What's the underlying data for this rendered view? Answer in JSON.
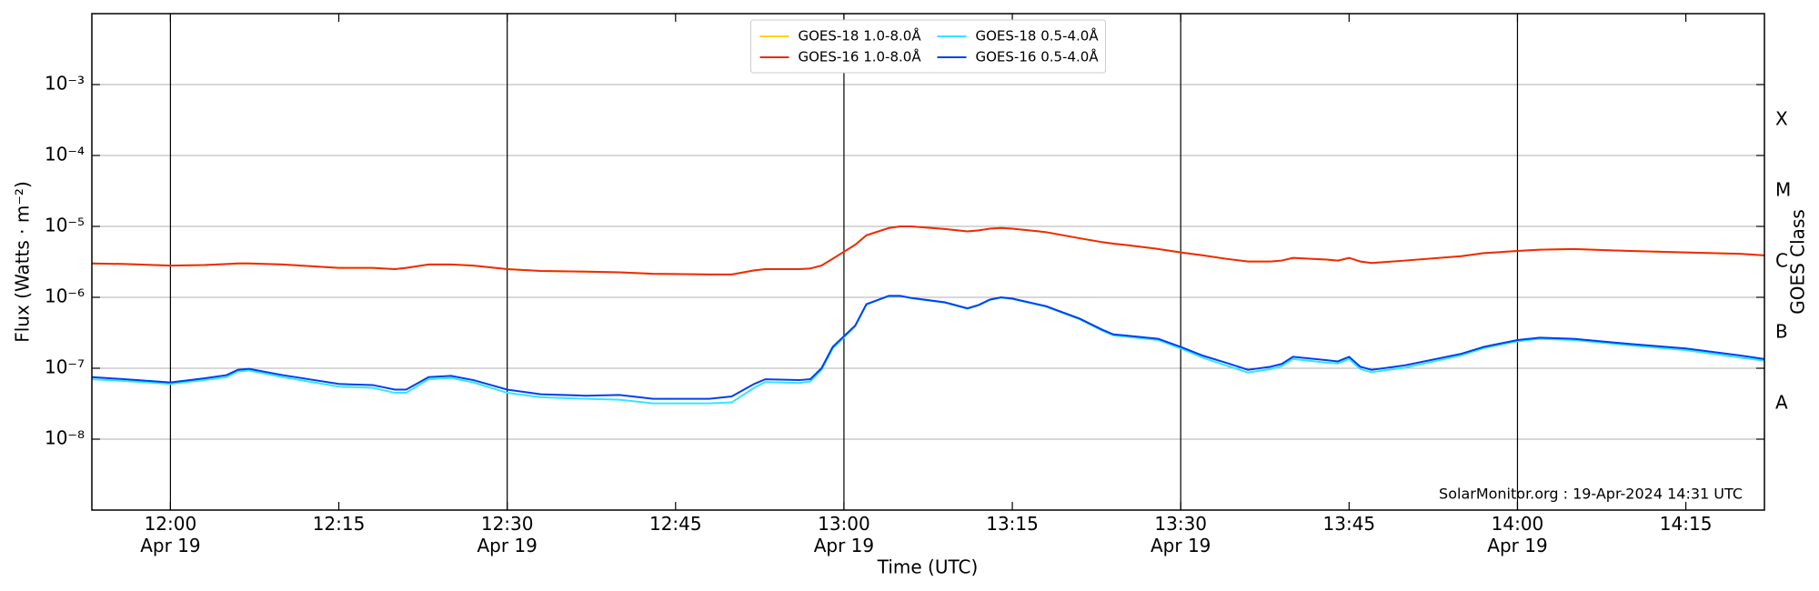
{
  "chart_data": {
    "type": "line",
    "xlabel": "Time (UTC)",
    "ylabel": "Flux (Watts · m⁻²)",
    "y2label": "GOES Class",
    "annotation": "SolarMonitor.org : 19-Apr-2024 14:31 UTC",
    "log_scale": true,
    "grid": true,
    "legend": "upper center",
    "xlim": [
      "11:53",
      "14:22"
    ],
    "xticks": [
      {
        "value": "12:00",
        "label": "12:00\nApr 19"
      },
      {
        "value": "12:15",
        "label": "12:15"
      },
      {
        "value": "12:30",
        "label": "12:30\nApr 19"
      },
      {
        "value": "12:45",
        "label": "12:45"
      },
      {
        "value": "13:00",
        "label": "13:00\nApr 19"
      },
      {
        "value": "13:15",
        "label": "13:15"
      },
      {
        "value": "13:30",
        "label": "13:30\nApr 19"
      },
      {
        "value": "13:45",
        "label": "13:45"
      },
      {
        "value": "14:00",
        "label": "14:00\nApr 19"
      },
      {
        "value": "14:15",
        "label": "14:15"
      }
    ],
    "ylim": [
      1e-09,
      0.01
    ],
    "yticks": [
      {
        "value": 1e-08,
        "label": "10⁻⁸"
      },
      {
        "value": 1e-07,
        "label": "10⁻⁷"
      },
      {
        "value": 1e-06,
        "label": "10⁻⁶"
      },
      {
        "value": 1e-05,
        "label": "10⁻⁵"
      },
      {
        "value": 0.0001,
        "label": "10⁻⁴"
      },
      {
        "value": 0.001,
        "label": "10⁻³"
      }
    ],
    "y2lim": [
      1e-09,
      0.01
    ],
    "y2ticks": [
      {
        "value": 3.16e-08,
        "label": "A"
      },
      {
        "value": 3.16e-07,
        "label": "B"
      },
      {
        "value": 3.16e-06,
        "label": "C"
      },
      {
        "value": 3.16e-05,
        "label": "M"
      },
      {
        "value": 0.000316,
        "label": "X"
      }
    ],
    "x": [
      "11:53",
      "11:56",
      "12:00",
      "12:03",
      "12:05",
      "12:06",
      "12:07",
      "12:10",
      "12:15",
      "12:18",
      "12:20",
      "12:21",
      "12:23",
      "12:25",
      "12:27",
      "12:30",
      "12:33",
      "12:37",
      "12:40",
      "12:43",
      "12:48",
      "12:50",
      "12:52",
      "12:53",
      "12:56",
      "12:57",
      "12:58",
      "12:59",
      "13:01",
      "13:02",
      "13:04",
      "13:05",
      "13:06",
      "13:09",
      "13:11",
      "13:12",
      "13:13",
      "13:14",
      "13:15",
      "13:18",
      "13:21",
      "13:23",
      "13:24",
      "13:25",
      "13:28",
      "13:30",
      "13:32",
      "13:34",
      "13:36",
      "13:38",
      "13:39",
      "13:40",
      "13:43",
      "13:44",
      "13:45",
      "13:46",
      "13:47",
      "13:50",
      "13:55",
      "13:57",
      "14:00",
      "14:02",
      "14:05",
      "14:10",
      "14:15",
      "14:20",
      "14:22"
    ],
    "series": [
      {
        "name": "GOES-18 1.0-8.0Å",
        "color": "#ffd700",
        "values": [
          3e-06,
          2.95e-06,
          2.8e-06,
          2.85e-06,
          2.95e-06,
          3e-06,
          3e-06,
          2.9e-06,
          2.6e-06,
          2.6e-06,
          2.5e-06,
          2.6e-06,
          2.9e-06,
          2.9e-06,
          2.8e-06,
          2.5e-06,
          2.35e-06,
          2.3e-06,
          2.25e-06,
          2.15e-06,
          2.1e-06,
          2.1e-06,
          2.4e-06,
          2.5e-06,
          2.5e-06,
          2.55e-06,
          2.8e-06,
          3.5e-06,
          5.5e-06,
          7.5e-06,
          9.5e-06,
          1e-05,
          1e-05,
          9.2e-06,
          8.5e-06,
          8.8e-06,
          9.3e-06,
          9.5e-06,
          9.3e-06,
          8.3e-06,
          6.8e-06,
          6e-06,
          5.7e-06,
          5.5e-06,
          4.8e-06,
          4.3e-06,
          3.9e-06,
          3.5e-06,
          3.2e-06,
          3.2e-06,
          3.3e-06,
          3.6e-06,
          3.4e-06,
          3.3e-06,
          3.6e-06,
          3.2e-06,
          3.05e-06,
          3.3e-06,
          3.8e-06,
          4.2e-06,
          4.5e-06,
          4.7e-06,
          4.8e-06,
          4.5e-06,
          4.3e-06,
          4.1e-06,
          3.9e-06
        ]
      },
      {
        "name": "GOES-16 1.0-8.0Å",
        "color": "#ee2a0a",
        "values": [
          3e-06,
          2.95e-06,
          2.8e-06,
          2.85e-06,
          2.95e-06,
          3e-06,
          3e-06,
          2.9e-06,
          2.6e-06,
          2.6e-06,
          2.5e-06,
          2.6e-06,
          2.9e-06,
          2.9e-06,
          2.8e-06,
          2.5e-06,
          2.35e-06,
          2.3e-06,
          2.25e-06,
          2.15e-06,
          2.1e-06,
          2.1e-06,
          2.4e-06,
          2.5e-06,
          2.5e-06,
          2.55e-06,
          2.8e-06,
          3.5e-06,
          5.5e-06,
          7.5e-06,
          9.5e-06,
          1e-05,
          1e-05,
          9.2e-06,
          8.5e-06,
          8.8e-06,
          9.3e-06,
          9.5e-06,
          9.3e-06,
          8.3e-06,
          6.8e-06,
          6e-06,
          5.7e-06,
          5.5e-06,
          4.8e-06,
          4.3e-06,
          3.9e-06,
          3.5e-06,
          3.2e-06,
          3.2e-06,
          3.3e-06,
          3.6e-06,
          3.4e-06,
          3.3e-06,
          3.6e-06,
          3.2e-06,
          3.05e-06,
          3.3e-06,
          3.8e-06,
          4.2e-06,
          4.5e-06,
          4.7e-06,
          4.8e-06,
          4.5e-06,
          4.3e-06,
          4.1e-06,
          3.9e-06
        ]
      },
      {
        "name": "GOES-18 0.5-4.0Å",
        "color": "#33e6ff",
        "values": [
          7e-08,
          6.6e-08,
          6e-08,
          6.8e-08,
          7.5e-08,
          9e-08,
          9.3e-08,
          7.5e-08,
          5.5e-08,
          5.3e-08,
          4.5e-08,
          4.5e-08,
          7e-08,
          7.3e-08,
          6.3e-08,
          4.5e-08,
          3.9e-08,
          3.7e-08,
          3.6e-08,
          3.2e-08,
          3.2e-08,
          3.3e-08,
          5.3e-08,
          6.4e-08,
          6.2e-08,
          6.5e-08,
          9.5e-08,
          1.9e-07,
          3.9e-07,
          7.9e-07,
          1.04e-06,
          1.04e-06,
          9.7e-07,
          8.4e-07,
          6.9e-07,
          7.7e-07,
          9.2e-07,
          9.9e-07,
          9.5e-07,
          7.4e-07,
          4.9e-07,
          3.4e-07,
          2.9e-07,
          2.8e-07,
          2.5e-07,
          1.9e-07,
          1.4e-07,
          1.1e-07,
          8.7e-08,
          9.7e-08,
          1.07e-07,
          1.35e-07,
          1.2e-07,
          1.17e-07,
          1.35e-07,
          9.7e-08,
          8.8e-08,
          1.02e-07,
          1.52e-07,
          1.92e-07,
          2.4e-07,
          2.6e-07,
          2.5e-07,
          2.1e-07,
          1.8e-07,
          1.4e-07,
          1.28e-07
        ]
      },
      {
        "name": "GOES-16 0.5-4.0Å",
        "color": "#0040ee",
        "values": [
          7.5e-08,
          7e-08,
          6.3e-08,
          7.2e-08,
          8e-08,
          9.5e-08,
          9.8e-08,
          8e-08,
          6e-08,
          5.8e-08,
          5e-08,
          5e-08,
          7.5e-08,
          7.8e-08,
          6.8e-08,
          5e-08,
          4.3e-08,
          4.1e-08,
          4.2e-08,
          3.7e-08,
          3.7e-08,
          4e-08,
          6e-08,
          7e-08,
          6.8e-08,
          7e-08,
          1e-07,
          2e-07,
          4e-07,
          8e-07,
          1.05e-06,
          1.05e-06,
          9.8e-07,
          8.5e-07,
          7e-07,
          7.8e-07,
          9.3e-07,
          1e-06,
          9.6e-07,
          7.5e-07,
          5e-07,
          3.5e-07,
          3e-07,
          2.9e-07,
          2.6e-07,
          2e-07,
          1.5e-07,
          1.2e-07,
          9.5e-08,
          1.05e-07,
          1.15e-07,
          1.45e-07,
          1.3e-07,
          1.25e-07,
          1.45e-07,
          1.05e-07,
          9.5e-08,
          1.1e-07,
          1.6e-07,
          2e-07,
          2.5e-07,
          2.7e-07,
          2.6e-07,
          2.2e-07,
          1.9e-07,
          1.5e-07,
          1.35e-07
        ]
      }
    ]
  }
}
